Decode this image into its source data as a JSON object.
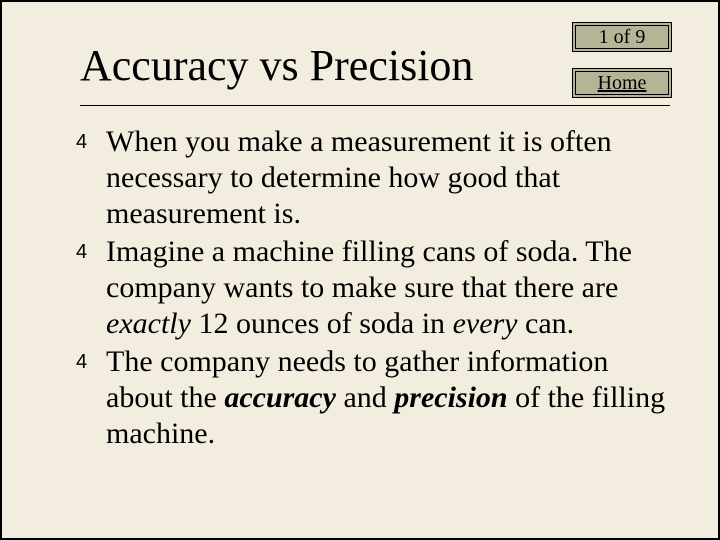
{
  "page": {
    "title": "Accuracy vs Precision",
    "pager": "1 of 9",
    "home": "Home"
  },
  "bullets": {
    "b1": {
      "mark": "4",
      "html": "When you make a measurement it is often necessary to determine how good that measurement is."
    },
    "b2": {
      "mark": "4",
      "html": "Imagine a machine filling cans of soda. The company wants to make sure that there are <span class=\"ital\">exactly</span> 12 ounces of soda in <span class=\"ital\">every</span> can."
    },
    "b3": {
      "mark": "4",
      "html": "The company needs to gather information about the <span class=\"boldital\">accuracy</span> and <span class=\"boldital\">precision</span> of the filling machine."
    }
  },
  "style": {
    "background": "#f2eddf",
    "nav_bg": "#b5b496",
    "text_color": "#000000"
  }
}
